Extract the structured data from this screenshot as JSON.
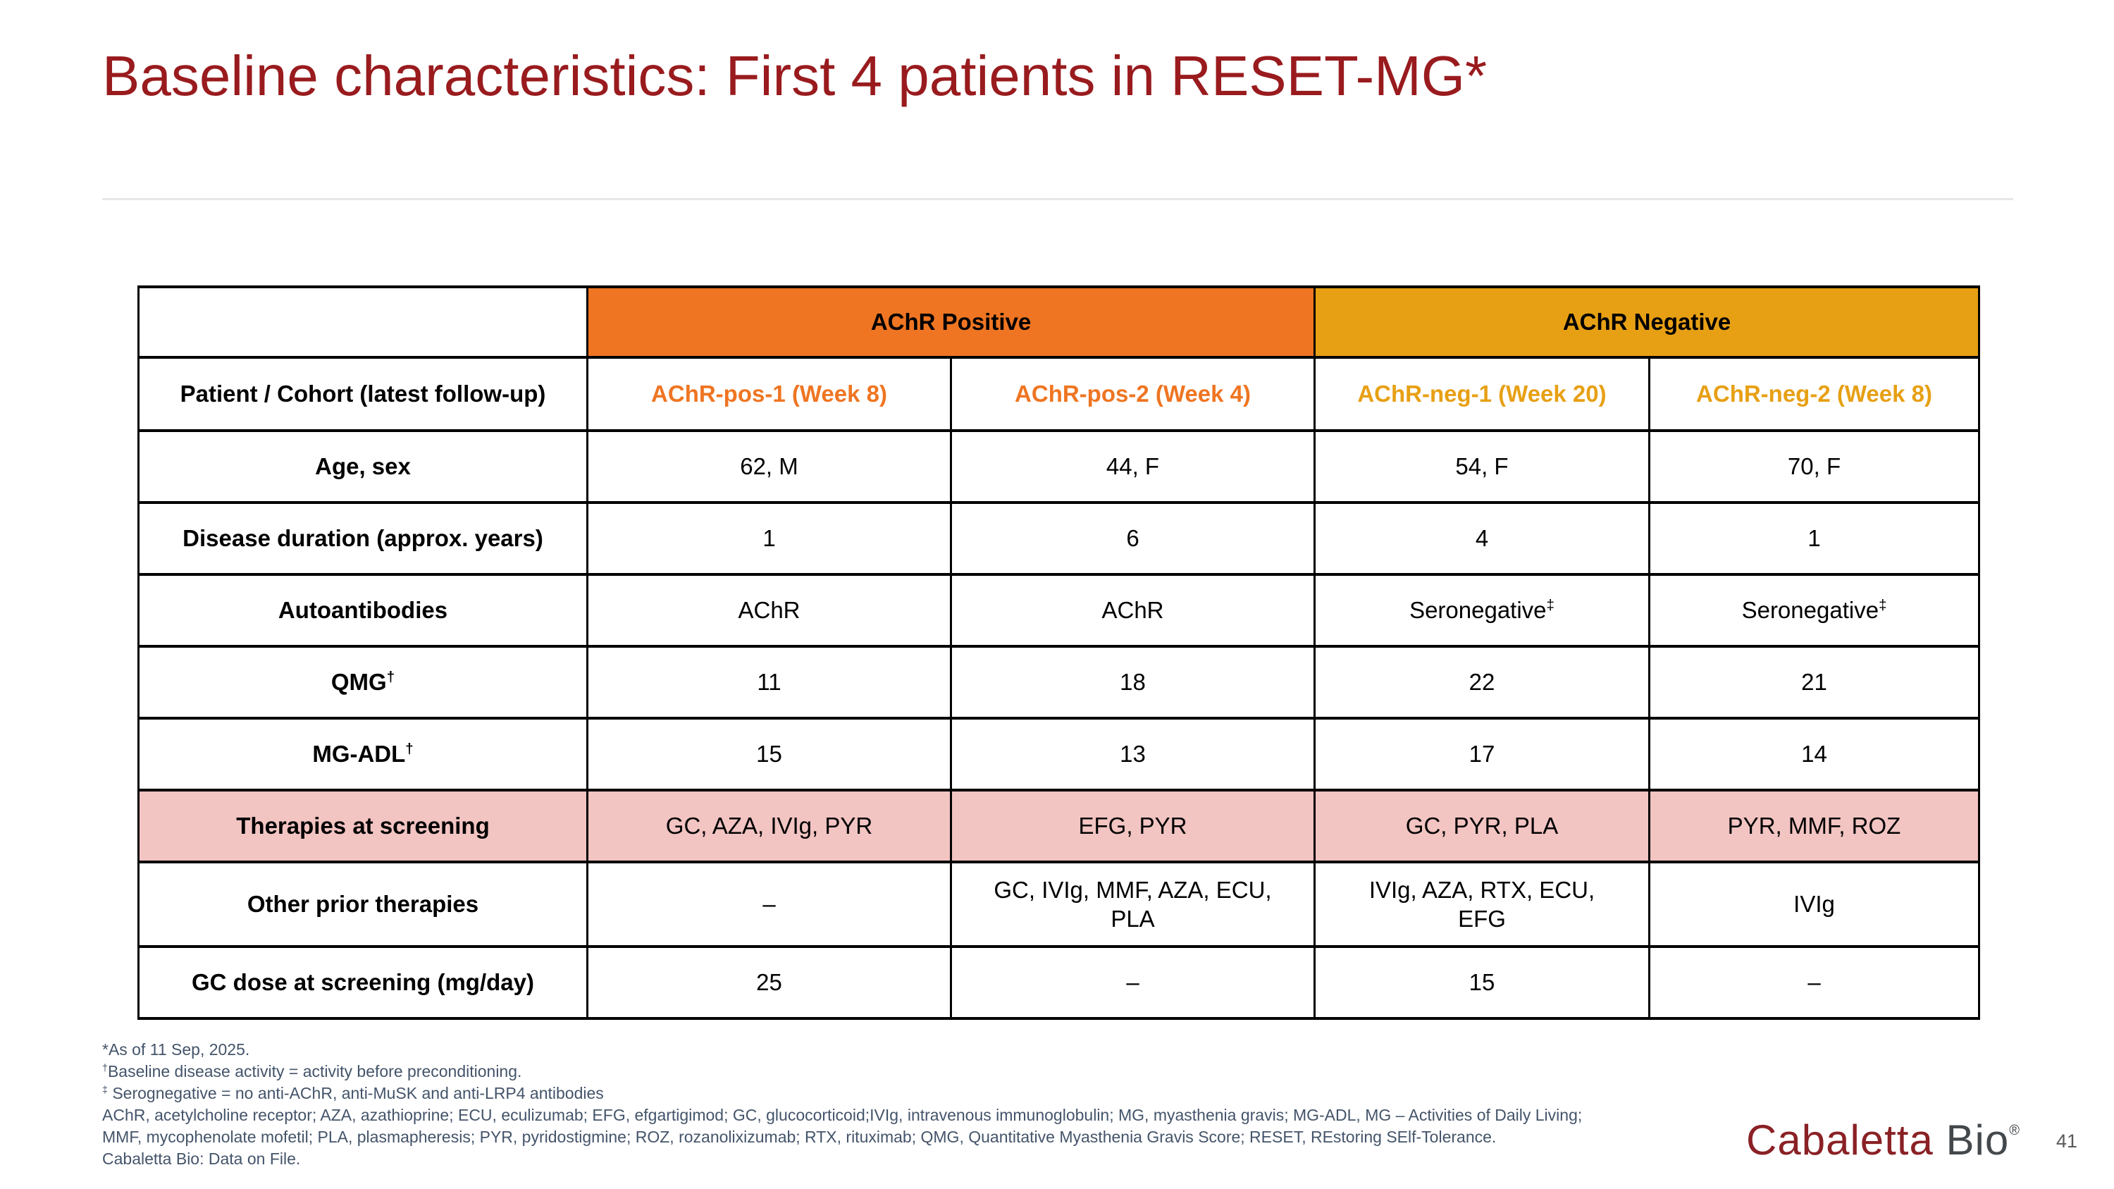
{
  "slide": {
    "title": "Baseline characteristics: First 4 patients in RESET-MG*"
  },
  "table": {
    "groups": [
      {
        "label": "AChR Positive",
        "color": "#EF7522"
      },
      {
        "label": "AChR Negative",
        "color": "#E7A014"
      }
    ],
    "patient_row": {
      "label": "Patient / Cohort (latest follow-up)",
      "columns": [
        {
          "label": "AChR-pos-1 (Week 8)",
          "color": "#EF7522"
        },
        {
          "label": "AChR-pos-2 (Week 4)",
          "color": "#EF7522"
        },
        {
          "label": "AChR-neg-1 (Week 20)",
          "color": "#E7A014"
        },
        {
          "label": "AChR-neg-2 (Week 8)",
          "color": "#E7A014"
        }
      ]
    },
    "rows": [
      {
        "label": "Age, sex",
        "values": [
          "62, M",
          "44, F",
          "54, F",
          "70, F"
        ]
      },
      {
        "label": "Disease duration (approx. years)",
        "values": [
          "1",
          "6",
          "4",
          "1"
        ]
      },
      {
        "label": "Autoantibodies",
        "values": [
          "AChR",
          "AChR",
          "Seronegative‡",
          "Seronegative‡"
        ]
      },
      {
        "label": "QMG†",
        "values": [
          "11",
          "18",
          "22",
          "21"
        ]
      },
      {
        "label": "MG-ADL†",
        "values": [
          "15",
          "13",
          "17",
          "14"
        ]
      },
      {
        "label": "Therapies at screening",
        "highlight": true,
        "values": [
          "GC, AZA, IVIg, PYR",
          "EFG, PYR",
          "GC, PYR, PLA",
          "PYR, MMF, ROZ"
        ]
      },
      {
        "label": "Other prior therapies",
        "values": [
          "–",
          "GC, IVIg, MMF, AZA, ECU,\nPLA",
          "IVIg, AZA, RTX, ECU,\nEFG",
          "IVIg"
        ]
      },
      {
        "label": "GC dose at screening (mg/day)",
        "values": [
          "25",
          "–",
          "15",
          "–"
        ]
      }
    ],
    "highlight_color": "#F2C4C2"
  },
  "footnotes": [
    "*As of 11 Sep, 2025.",
    "†Baseline disease activity = activity before preconditioning.",
    "‡ Serognegative = no anti-AChR, anti-MuSK and anti-LRP4 antibodies",
    "AChR, acetylcholine receptor; AZA, azathioprine; ECU, eculizumab; EFG, efgartigimod; GC, glucocorticoid;IVIg, intravenous immunoglobulin; MG, myasthenia gravis; MG-ADL, MG – Activities of Daily Living;",
    "MMF, mycophenolate mofetil; PLA, plasmapheresis; PYR, pyridostigmine; ROZ, rozanolixizumab; RTX, rituximab; QMG, Quantitative Myasthenia Gravis Score; RESET, REstoring SElf-Tolerance.",
    "Cabaletta Bio: Data on File."
  ],
  "footer": {
    "logo_primary": "Cabaletta ",
    "logo_secondary": "Bio",
    "logo_registered": "®",
    "page_number": "41"
  }
}
